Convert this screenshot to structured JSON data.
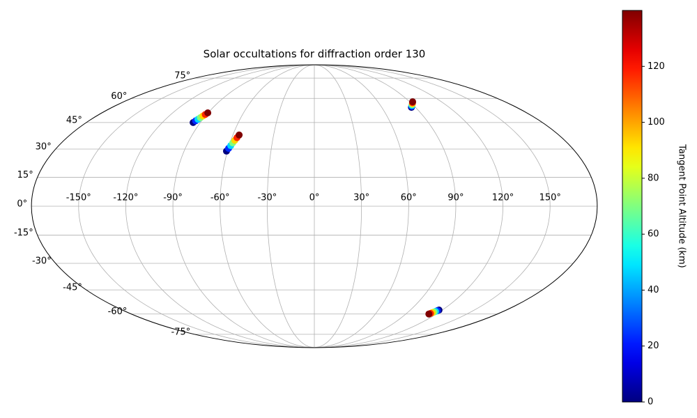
{
  "chart_data": {
    "type": "scatter",
    "projection": "mollweide",
    "title": "Solar occultations for diffraction order 130",
    "x": [
      -95.7,
      -94.8,
      -93.9,
      -93.0,
      -92.1,
      -91.2,
      -90.3,
      -60.7,
      -59.8,
      -58.9,
      -58.1,
      -57.2,
      -56.3,
      -55.4,
      86.4,
      87.5,
      88.5,
      89.6,
      90.7,
      91.7,
      92.8,
      116.9,
      116.2,
      115.5,
      114.8,
      114.0,
      113.3,
      112.6
    ],
    "y": [
      45.0,
      46.0,
      46.9,
      47.9,
      48.9,
      49.8,
      50.8,
      28.9,
      30.4,
      31.9,
      33.4,
      34.8,
      36.3,
      37.8,
      54.2,
      54.8,
      55.4,
      56.0,
      56.6,
      57.2,
      57.8,
      -57.4,
      -57.8,
      -58.3,
      -58.7,
      -59.1,
      -59.6,
      -60.0
    ],
    "c": [
      0,
      23,
      47,
      70,
      93,
      117,
      140,
      0,
      23,
      47,
      70,
      93,
      117,
      140,
      0,
      23,
      47,
      70,
      93,
      117,
      140,
      0,
      23,
      47,
      70,
      93,
      117,
      140
    ],
    "colormap": "jet",
    "clim": [
      0,
      140
    ],
    "cticks": [
      0,
      20,
      40,
      60,
      80,
      100,
      120
    ],
    "colorbar_label": "Tangent Point Altitude (km)",
    "xlim": [
      -180,
      180
    ],
    "ylim": [
      -90,
      90
    ],
    "xticks": [
      {
        "value": -150,
        "label": "-150°"
      },
      {
        "value": -120,
        "label": "-120°"
      },
      {
        "value": -90,
        "label": "-90°"
      },
      {
        "value": -60,
        "label": "-60°"
      },
      {
        "value": -30,
        "label": "-30°"
      },
      {
        "value": 0,
        "label": "0°"
      },
      {
        "value": 30,
        "label": "30°"
      },
      {
        "value": 60,
        "label": "60°"
      },
      {
        "value": 90,
        "label": "90°"
      },
      {
        "value": 120,
        "label": "120°"
      },
      {
        "value": 150,
        "label": "150°"
      }
    ],
    "yticks": [
      {
        "value": -75,
        "label": "-75°"
      },
      {
        "value": -60,
        "label": "-60°"
      },
      {
        "value": -45,
        "label": "-45°"
      },
      {
        "value": -30,
        "label": "-30°"
      },
      {
        "value": -15,
        "label": "-15°"
      },
      {
        "value": 0,
        "label": "0°"
      },
      {
        "value": 15,
        "label": "15°"
      },
      {
        "value": 30,
        "label": "30°"
      },
      {
        "value": 45,
        "label": "45°"
      },
      {
        "value": 60,
        "label": "60°"
      },
      {
        "value": 75,
        "label": "75°"
      }
    ],
    "grid": true
  }
}
